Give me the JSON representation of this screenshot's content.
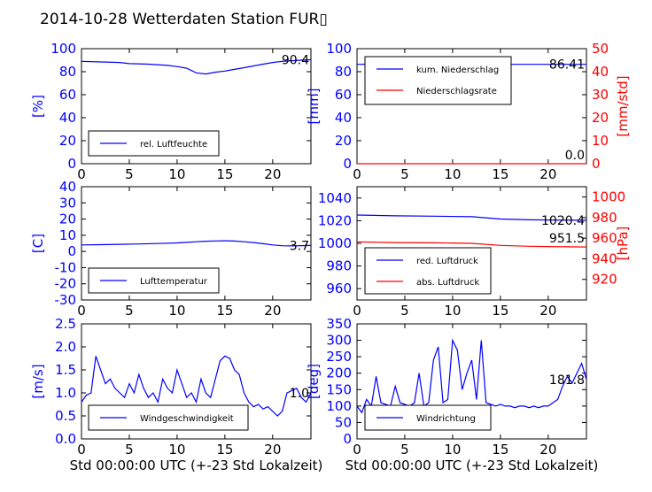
{
  "title": "2014-10-28 Wetterdaten Station FUR▯",
  "colors": {
    "primary": "#0000ff",
    "secondary": "#ff0000",
    "text": "#000000"
  },
  "chart_data": [
    {
      "id": "humidity",
      "type": "line",
      "xlim": [
        0,
        24
      ],
      "ylim": [
        0,
        100
      ],
      "xticks": [
        0,
        5,
        10,
        15,
        20
      ],
      "yticks": [
        0,
        20,
        40,
        60,
        80,
        100
      ],
      "ylabel": "[%]",
      "last_value_label": "90.4",
      "legend": {
        "position": "lower-left",
        "entries": [
          {
            "name": "rel. Luftfeuchte",
            "color": "#0000ff"
          }
        ]
      },
      "series": [
        {
          "name": "rel. Luftfeuchte",
          "color": "#0000ff",
          "x": [
            0,
            2,
            4,
            5,
            7,
            9,
            10,
            11,
            12,
            13,
            14,
            15,
            16,
            17,
            18,
            19,
            20,
            21,
            22,
            23,
            24
          ],
          "y": [
            89,
            88.5,
            88,
            87,
            86.5,
            85.5,
            84.5,
            83,
            79,
            78,
            79.5,
            80.5,
            82,
            83.5,
            85,
            86.5,
            88,
            89,
            89.5,
            90,
            90.4
          ]
        }
      ]
    },
    {
      "id": "precipitation",
      "type": "line",
      "xlim": [
        0,
        24
      ],
      "ylim": [
        0,
        100
      ],
      "ylim_right": [
        0,
        50
      ],
      "xticks": [
        0,
        5,
        10,
        15,
        20
      ],
      "yticks": [
        0,
        20,
        40,
        60,
        80,
        100
      ],
      "yticks_right": [
        0,
        10,
        20,
        30,
        40,
        50
      ],
      "ylabel": "[mm]",
      "ylabel_right": "[mm/std]",
      "last_value_label": "86.41",
      "last_value_label_right": "0.0",
      "legend": {
        "position": "upper-left",
        "entries": [
          {
            "name": "kum. Niederschlag",
            "color": "#0000ff"
          },
          {
            "name": "Niederschlagsrate",
            "color": "#ff0000"
          }
        ]
      },
      "series": [
        {
          "name": "kum. Niederschlag",
          "color": "#0000ff",
          "axis": "left",
          "x": [
            0,
            24
          ],
          "y": [
            86.41,
            86.41
          ]
        },
        {
          "name": "Niederschlagsrate",
          "color": "#ff0000",
          "axis": "right",
          "x": [
            0,
            24
          ],
          "y": [
            0,
            0
          ]
        }
      ]
    },
    {
      "id": "temperature",
      "type": "line",
      "xlim": [
        0,
        24
      ],
      "ylim": [
        -30,
        40
      ],
      "xticks": [
        0,
        5,
        10,
        15,
        20
      ],
      "yticks": [
        -30,
        -20,
        -10,
        0,
        10,
        20,
        30,
        40
      ],
      "ylabel": "[C]",
      "last_value_label": "3.7",
      "legend": {
        "position": "lower-left",
        "entries": [
          {
            "name": "Lufttemperatur",
            "color": "#0000ff"
          }
        ]
      },
      "series": [
        {
          "name": "Lufttemperatur",
          "color": "#0000ff",
          "x": [
            0,
            2,
            4,
            6,
            8,
            10,
            11,
            12,
            13,
            14,
            15,
            16,
            17,
            18,
            19,
            20,
            21,
            22,
            23,
            24
          ],
          "y": [
            4,
            4.2,
            4.4,
            4.6,
            4.9,
            5.3,
            5.6,
            6.0,
            6.3,
            6.5,
            6.6,
            6.4,
            6.0,
            5.5,
            4.8,
            4.0,
            3.5,
            3.4,
            3.6,
            3.7
          ]
        }
      ]
    },
    {
      "id": "pressure",
      "type": "line",
      "xlim": [
        0,
        24
      ],
      "ylim": [
        950,
        1050
      ],
      "ylim_right": [
        900,
        1010
      ],
      "xticks": [
        0,
        5,
        10,
        15,
        20
      ],
      "yticks": [
        960,
        980,
        1000,
        1020,
        1040
      ],
      "yticks_right": [
        920,
        940,
        960,
        980,
        1000
      ],
      "ylabel_right": "[hPa]",
      "last_value_label": "1020.4",
      "last_value_label_right": "951.5",
      "legend": {
        "position": "lower-left",
        "entries": [
          {
            "name": "red. Luftdruck",
            "color": "#0000ff"
          },
          {
            "name": "abs. Luftdruck",
            "color": "#ff0000"
          }
        ]
      },
      "series": [
        {
          "name": "red. Luftdruck",
          "color": "#0000ff",
          "axis": "left",
          "x": [
            0,
            4,
            8,
            12,
            15,
            18,
            20,
            24
          ],
          "y": [
            1025,
            1024.3,
            1024,
            1023.5,
            1021.5,
            1020.8,
            1020.6,
            1020.4
          ]
        },
        {
          "name": "abs. Luftdruck",
          "color": "#ff0000",
          "axis": "right",
          "x": [
            0,
            4,
            8,
            12,
            15,
            18,
            20,
            24
          ],
          "y": [
            956.5,
            955.8,
            955.5,
            955,
            953,
            952.2,
            951.9,
            951.5
          ]
        }
      ]
    },
    {
      "id": "windspeed",
      "type": "line",
      "xlim": [
        0,
        24
      ],
      "ylim": [
        0,
        2.5
      ],
      "xticks": [
        0,
        5,
        10,
        15,
        20
      ],
      "yticks": [
        0.0,
        0.5,
        1.0,
        1.5,
        2.0,
        2.5
      ],
      "ylabel": "[m/s]",
      "xlabel": "Std 00:00:00 UTC (+-23 Std Lokalzeit)",
      "last_value_label": "1.0",
      "legend": {
        "position": "lower-left",
        "entries": [
          {
            "name": "Windgeschwindigkeit",
            "color": "#0000ff"
          }
        ]
      },
      "series": [
        {
          "name": "Windgeschwindigkeit",
          "color": "#0000ff",
          "x": [
            0,
            0.5,
            1,
            1.5,
            2,
            2.5,
            3,
            3.5,
            4,
            4.5,
            5,
            5.5,
            6,
            6.5,
            7,
            7.5,
            8,
            8.5,
            9,
            9.5,
            10,
            10.5,
            11,
            11.5,
            12,
            12.5,
            13,
            13.5,
            14,
            14.5,
            15,
            15.5,
            16,
            16.5,
            17,
            17.5,
            18,
            18.5,
            19,
            19.5,
            20,
            20.5,
            21,
            21.5,
            22,
            22.5,
            23,
            23.5,
            24
          ],
          "y": [
            0.8,
            0.95,
            1.0,
            1.8,
            1.5,
            1.2,
            1.3,
            1.1,
            1.0,
            0.9,
            1.2,
            1.0,
            1.4,
            1.1,
            0.9,
            1.0,
            0.8,
            1.3,
            1.1,
            1.0,
            1.5,
            1.2,
            0.9,
            1.0,
            0.8,
            1.3,
            1.0,
            0.9,
            1.3,
            1.7,
            1.8,
            1.75,
            1.5,
            1.4,
            1.0,
            0.8,
            0.7,
            0.75,
            0.65,
            0.7,
            0.6,
            0.5,
            0.6,
            1.0,
            1.05,
            1.1,
            0.9,
            0.8,
            1.0
          ]
        }
      ]
    },
    {
      "id": "winddirection",
      "type": "line",
      "xlim": [
        0,
        24
      ],
      "ylim": [
        0,
        350
      ],
      "xticks": [
        0,
        5,
        10,
        15,
        20
      ],
      "yticks": [
        0,
        50,
        100,
        150,
        200,
        250,
        300,
        350
      ],
      "ylabel": "[deg]",
      "xlabel": "Std 00:00:00 UTC (+-23 Std Lokalzeit)",
      "last_value_label": "181.8",
      "legend": {
        "position": "lower-left",
        "entries": [
          {
            "name": "Windrichtung",
            "color": "#0000ff"
          }
        ]
      },
      "series": [
        {
          "name": "Windrichtung",
          "color": "#0000ff",
          "x": [
            0,
            0.5,
            1,
            1.5,
            2,
            2.5,
            3,
            3.5,
            4,
            4.5,
            5,
            5.5,
            6,
            6.5,
            7,
            7.5,
            8,
            8.5,
            9,
            9.5,
            10,
            10.5,
            11,
            11.5,
            12,
            12.5,
            13,
            13.5,
            14,
            14.5,
            15,
            15.5,
            16,
            16.5,
            17,
            17.5,
            18,
            18.5,
            19,
            19.5,
            20,
            20.5,
            21,
            21.5,
            22,
            22.5,
            23,
            23.5,
            24
          ],
          "y": [
            100,
            80,
            120,
            100,
            190,
            110,
            105,
            100,
            160,
            110,
            105,
            100,
            110,
            200,
            100,
            110,
            240,
            280,
            110,
            120,
            300,
            270,
            150,
            200,
            240,
            120,
            300,
            110,
            105,
            100,
            105,
            100,
            100,
            95,
            100,
            100,
            95,
            100,
            95,
            100,
            100,
            110,
            120,
            160,
            190,
            170,
            200,
            230,
            180
          ]
        }
      ]
    }
  ]
}
